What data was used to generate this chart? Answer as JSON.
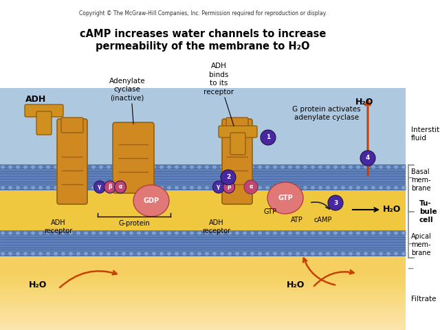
{
  "title_line1": "cAMP increases water channels to increase",
  "title_line2": "permeability of the membrane to H₂O",
  "copyright_text": "Copyright © The McGraw-Hill Companies, Inc. Permission required for reproduction or display.",
  "bg_white": "#ffffff",
  "bg_interstitial": "#aec8e0",
  "bg_tubule": "#f0c840",
  "bg_filtrate_top": "#f0c840",
  "bg_filtrate_bot": "#f8e8a0",
  "membrane_color": "#5070a8",
  "receptor_color": "#d08020",
  "arrow_orange": "#c84000",
  "arrow_black": "#000000",
  "circle_color": "#4828a0"
}
